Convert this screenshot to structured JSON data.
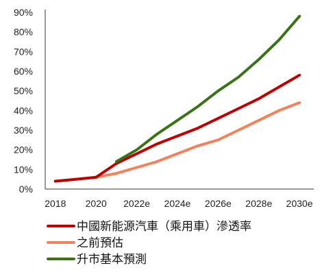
{
  "chart_data": {
    "type": "line",
    "title": "",
    "xlabel": "",
    "ylabel": "",
    "x": [
      2018,
      2019,
      2020,
      2021,
      2022,
      2023,
      2024,
      2025,
      2026,
      2027,
      2028,
      2029,
      2030
    ],
    "x_tick_labels": [
      "2018",
      "2020",
      "2022e",
      "2024e",
      "2026e",
      "2028e",
      "2030e"
    ],
    "x_tick_positions": [
      2018,
      2020,
      2022,
      2024,
      2026,
      2028,
      2030
    ],
    "y_tick_labels": [
      "0%",
      "10%",
      "20%",
      "30%",
      "40%",
      "50%",
      "60%",
      "70%",
      "80%",
      "90%"
    ],
    "ylim": [
      0,
      90
    ],
    "xlim": [
      2017.5,
      2030.5
    ],
    "grid": false,
    "legend_position": "bottom",
    "series": [
      {
        "name": "中國新能源汽車（乘用車）滲透率",
        "color": "#c00000",
        "values": [
          4,
          5,
          6,
          13,
          18,
          23,
          27,
          31,
          36,
          41,
          46,
          52,
          58
        ]
      },
      {
        "name": "之前預估",
        "color": "#f4815a",
        "values": [
          4,
          5,
          6,
          8,
          11,
          14,
          18,
          22,
          25,
          30,
          35,
          40,
          44
        ]
      },
      {
        "name": "升市基本預測",
        "color": "#3a7317",
        "values": [
          null,
          null,
          null,
          14,
          20,
          28,
          35,
          42,
          50,
          57,
          66,
          76,
          88
        ]
      }
    ]
  }
}
